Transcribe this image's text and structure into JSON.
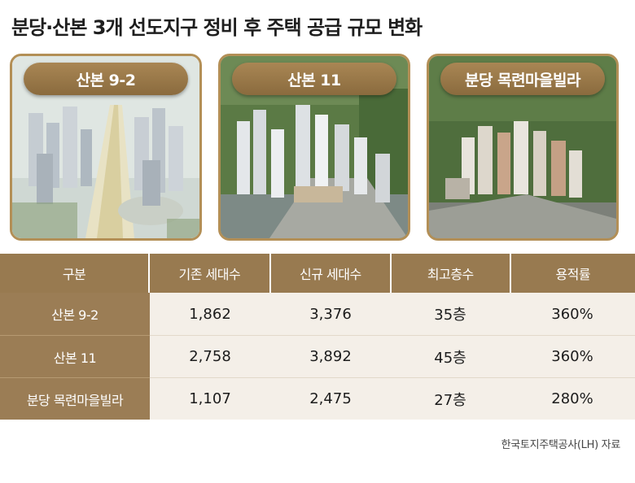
{
  "title": "분당·산본 3개 선도지구 정비 후 주택 공급 규모 변화",
  "cards": [
    {
      "label": "산본 9-2"
    },
    {
      "label": "산본 11"
    },
    {
      "label": "분당 목련마을빌라"
    }
  ],
  "table": {
    "headers": [
      "구분",
      "기존 세대수",
      "신규 세대수",
      "최고층수",
      "용적률"
    ],
    "rows": [
      {
        "name": "산본 9-2",
        "existing": "1,862",
        "new": "3,376",
        "floors": "35층",
        "far": "360%"
      },
      {
        "name": "산본 11",
        "existing": "2,758",
        "new": "3,892",
        "floors": "45층",
        "far": "360%"
      },
      {
        "name": "분당 목련마을빌라",
        "existing": "1,107",
        "new": "2,475",
        "floors": "27층",
        "far": "280%"
      }
    ]
  },
  "source": "한국토지주택공사(LH) 자료"
}
